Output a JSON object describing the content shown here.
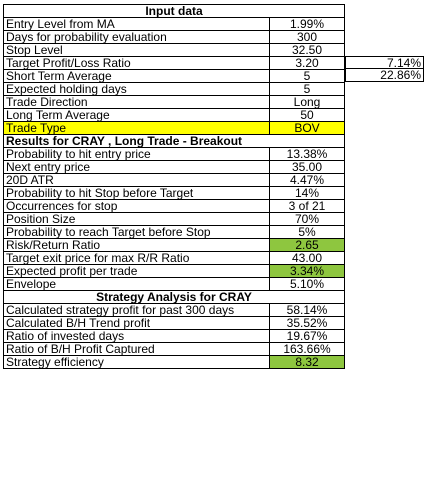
{
  "input": {
    "title": "Input data",
    "rows": [
      {
        "label": "Entry Level from MA",
        "value": "1.99%"
      },
      {
        "label": "Days for probability evaluation",
        "value": "300"
      },
      {
        "label": "Stop Level",
        "value": "32.50"
      },
      {
        "label": "Target Profit/Loss Ratio",
        "value": "3.20"
      },
      {
        "label": "Short Term Average",
        "value": "5"
      },
      {
        "label": "Expected holding days",
        "value": "5"
      },
      {
        "label": "Trade Direction",
        "value": "Long"
      },
      {
        "label": "Long Term Average",
        "value": "50"
      },
      {
        "label": "Trade Type",
        "value": "BOV"
      }
    ],
    "side_values": [
      "7.14%",
      "22.86%"
    ]
  },
  "results": {
    "title": "Results for CRAY , Long Trade - Breakout",
    "rows": [
      {
        "label": "Probability to hit entry price",
        "value": "13.38%"
      },
      {
        "label": "Next entry price",
        "value": "35.00"
      },
      {
        "label": "20D ATR",
        "value": "4.47%"
      },
      {
        "label": "Probability to hit Stop before Target",
        "value": "14%"
      },
      {
        "label": "Occurrences for stop",
        "value": "3 of 21"
      },
      {
        "label": "Position Size",
        "value": "70%"
      },
      {
        "label": "Probability to reach Target before Stop",
        "value": "5%"
      },
      {
        "label": "Risk/Return Ratio",
        "value": "2.65"
      },
      {
        "label": "Target exit price for max R/R Ratio",
        "value": "43.00"
      },
      {
        "label": "Expected profit per trade",
        "value": "3.34%"
      },
      {
        "label": "Envelope",
        "value": "5.10%"
      }
    ]
  },
  "strategy": {
    "title": "Strategy Analysis for CRAY",
    "rows": [
      {
        "label": "Calculated strategy profit for past 300 days",
        "value": "58.14%"
      },
      {
        "label": "Calculated B/H Trend profit",
        "value": "35.52%"
      },
      {
        "label": "Ratio of invested days",
        "value": "19.67%"
      },
      {
        "label": "Ratio of B/H Profit Captured",
        "value": "163.66%"
      },
      {
        "label": "Strategy efficiency",
        "value": "8.32"
      }
    ]
  },
  "colors": {
    "highlight_yellow": "#ffff00",
    "highlight_green": "#8ec63f"
  }
}
